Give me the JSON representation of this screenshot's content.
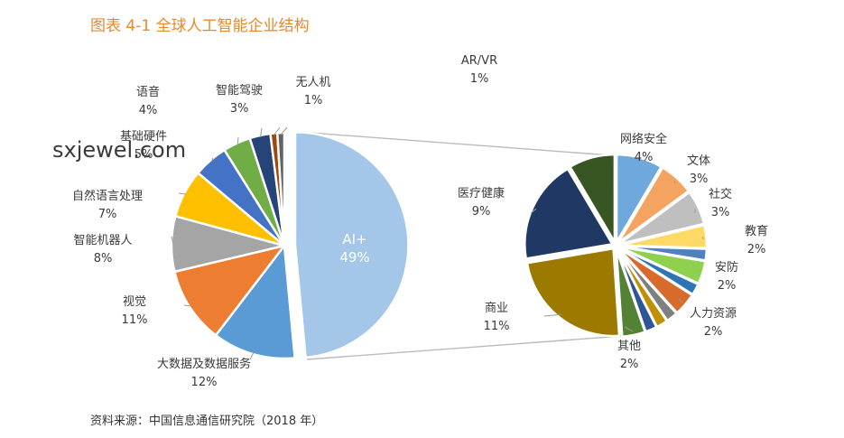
{
  "title": "图表 4-1 全球人工智能企业结构",
  "source": "资料来源：中国信息通信研究院（2018 年）",
  "watermark": "sxjewel.com",
  "colors": {
    "title": "#e8892a",
    "leader": "#9a9a9a",
    "connector": "#bbbbbb"
  },
  "chart_data": [
    {
      "type": "pie",
      "title": "",
      "slices": [
        {
          "label": "AI+",
          "value": 49,
          "display": "49%",
          "color": "#a4c6e8"
        },
        {
          "label": "大数据及数据服务",
          "value": 12,
          "display": "12%",
          "color": "#5b9bd5"
        },
        {
          "label": "视觉",
          "value": 11,
          "display": "11%",
          "color": "#ed7d31"
        },
        {
          "label": "智能机器人",
          "value": 8,
          "display": "8%",
          "color": "#a5a5a5"
        },
        {
          "label": "自然语言处理",
          "value": 7,
          "display": "7%",
          "color": "#ffc000"
        },
        {
          "label": "基础硬件",
          "value": 5,
          "display": "5%",
          "color": "#4472c4"
        },
        {
          "label": "语音",
          "value": 4,
          "display": "4%",
          "color": "#70ad47"
        },
        {
          "label": "智能驾驶",
          "value": 3,
          "display": "3%",
          "color": "#264478"
        },
        {
          "label": "无人机",
          "value": 1,
          "display": "1%",
          "color": "#9e480e"
        },
        {
          "label": "AR/VR",
          "value": 1,
          "display": "1%",
          "color": "#636363"
        }
      ]
    },
    {
      "type": "pie",
      "title": "",
      "slices": [
        {
          "label": "网络安全",
          "value": 4,
          "display": "4%",
          "color": "#6fa8dc"
        },
        {
          "label": "文体",
          "value": 3,
          "display": "3%",
          "color": "#f4a460"
        },
        {
          "label": "社交",
          "value": 3,
          "display": "3%",
          "color": "#bfbfbf"
        },
        {
          "label": "教育",
          "value": 2,
          "display": "2%",
          "color": "#ffd966"
        },
        {
          "label": "",
          "value": 1,
          "display": "",
          "color": "#4f81bd"
        },
        {
          "label": "安防",
          "value": 2,
          "display": "2%",
          "color": "#8fd14f"
        },
        {
          "label": "",
          "value": 1,
          "display": "",
          "color": "#2e75b6"
        },
        {
          "label": "人力资源",
          "value": 2,
          "display": "2%",
          "color": "#d86b2b"
        },
        {
          "label": "",
          "value": 1,
          "display": "",
          "color": "#7f7f7f"
        },
        {
          "label": "",
          "value": 1,
          "display": "",
          "color": "#bf9000"
        },
        {
          "label": "",
          "value": 1,
          "display": "",
          "color": "#2f5597"
        },
        {
          "label": "其他",
          "value": 2,
          "display": "2%",
          "color": "#548235"
        },
        {
          "label": "商业",
          "value": 11,
          "display": "11%",
          "color": "#9c7a00"
        },
        {
          "label": "医疗健康",
          "value": 9,
          "display": "9%",
          "color": "#203864"
        },
        {
          "label": "",
          "value": 4,
          "display": "",
          "color": "#375623"
        }
      ]
    }
  ]
}
